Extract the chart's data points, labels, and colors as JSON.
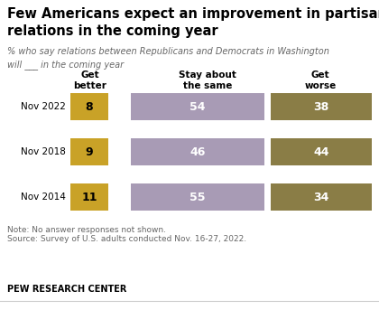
{
  "title": "Few Americans expect an improvement in partisan\nrelations in the coming year",
  "subtitle": "% who say relations between Republicans and Democrats in Washington\nwill ___ in the coming year",
  "rows": [
    "Nov 2022",
    "Nov 2018",
    "Nov 2014"
  ],
  "col_headers": [
    "Get\nbetter",
    "Stay about\nthe same",
    "Get\nworse"
  ],
  "get_better": [
    8,
    9,
    11
  ],
  "stay_same": [
    54,
    46,
    55
  ],
  "get_worse": [
    38,
    44,
    34
  ],
  "color_better": "#C9A227",
  "color_same": "#A89BB5",
  "color_worse": "#8A7D46",
  "text_color_better": "#000000",
  "text_color_same": "#ffffff",
  "text_color_worse": "#ffffff",
  "note": "Note: No answer responses not shown.",
  "source": "Source: Survey of U.S. adults conducted Nov. 16-27, 2022.",
  "footer": "PEW RESEARCH CENTER",
  "bg_color": "#ffffff"
}
